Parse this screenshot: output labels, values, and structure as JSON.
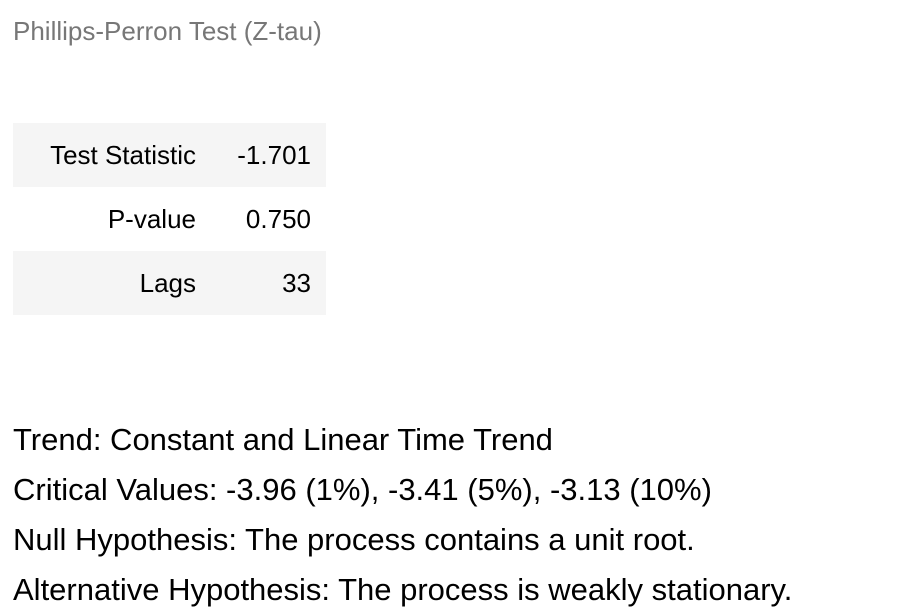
{
  "caption": "Phillips-Perron Test (Z-tau)",
  "results": [
    {
      "label": "Test Statistic",
      "value": "-1.701"
    },
    {
      "label": "P-value",
      "value": "0.750"
    },
    {
      "label": "Lags",
      "value": "33"
    }
  ],
  "summary": {
    "trend": "Trend: Constant and Linear Time Trend",
    "critical_values": "Critical Values: -3.96 (1%), -3.41 (5%), -3.13 (10%)",
    "null_hypothesis": "Null Hypothesis: The process contains a unit root.",
    "alternative_hypothesis": "Alternative Hypothesis: The process is weakly stationary."
  },
  "colors": {
    "caption_text": "#777777",
    "stripe": "#f5f5f5"
  }
}
